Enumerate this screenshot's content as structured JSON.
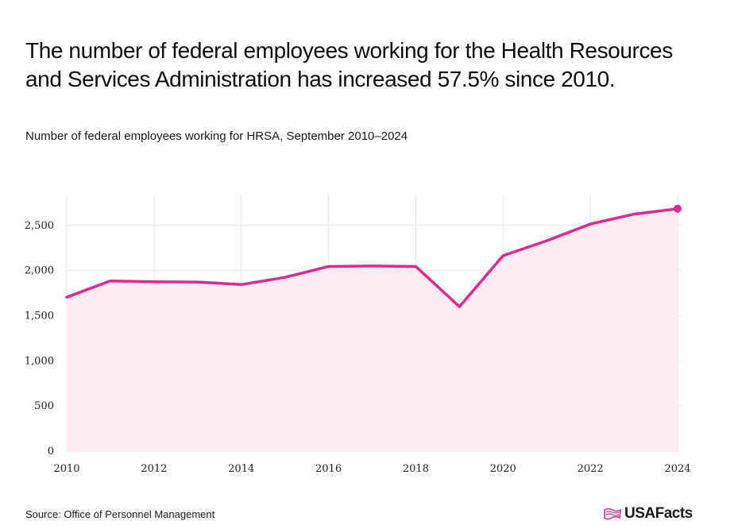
{
  "title": "The number of federal employees working for the Health Resources and Services Administration has increased 57.5% since 2010.",
  "subtitle": "Number of federal employees working for HRSA, September 2010–2024",
  "source": "Source: Office of Personnel Management",
  "logo_text": "USAFacts",
  "colors": {
    "line": "#e0288f",
    "area": "#fcebf3",
    "grid": "#e6e6e6"
  },
  "chart_data": {
    "type": "area",
    "title": "The number of federal employees working for the Health Resources and Services Administration has increased 57.5% since 2010.",
    "x": [
      2010,
      2011,
      2012,
      2013,
      2014,
      2015,
      2016,
      2017,
      2018,
      2019,
      2020,
      2021,
      2022,
      2023,
      2024
    ],
    "values": [
      1705,
      1885,
      1875,
      1873,
      1845,
      1925,
      2045,
      2050,
      2045,
      1600,
      2165,
      2330,
      2515,
      2625,
      2685
    ],
    "xlim": [
      2010,
      2024
    ],
    "ylim": [
      0,
      2850
    ],
    "x_ticks": [
      "2010",
      "2012",
      "2014",
      "2016",
      "2018",
      "2020",
      "2022",
      "2024"
    ],
    "y_ticks": [
      "0",
      "500",
      "1,000",
      "1,500",
      "2,000",
      "2,500"
    ],
    "grid": true,
    "legend": "none",
    "end_marker": true
  }
}
